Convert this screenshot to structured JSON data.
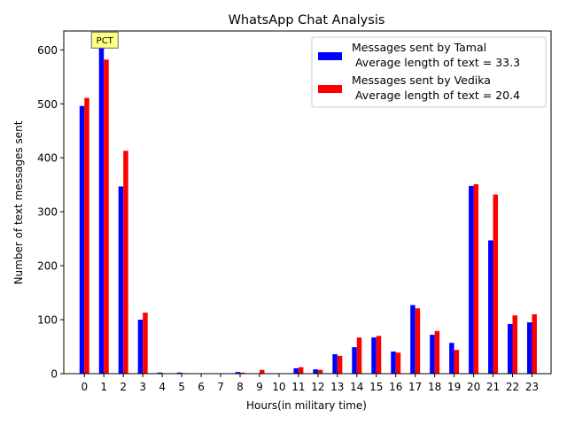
{
  "chart_data": {
    "type": "bar",
    "title": "WhatsApp Chat Analysis",
    "xlabel": "Hours(in military time)",
    "ylabel": "Number of text messages sent",
    "categories": [
      "0",
      "1",
      "2",
      "3",
      "4",
      "5",
      "6",
      "7",
      "8",
      "9",
      "10",
      "11",
      "12",
      "13",
      "14",
      "15",
      "16",
      "17",
      "18",
      "19",
      "20",
      "21",
      "22",
      "23"
    ],
    "ylim": [
      0,
      635
    ],
    "yticks": [
      0,
      100,
      200,
      300,
      400,
      500,
      600
    ],
    "grid": false,
    "legend_position": "upper-right",
    "series": [
      {
        "name": "Messages sent by Tamal\n Average length of text = 33.3",
        "color": "#0000ff",
        "values": [
          496,
          605,
          347,
          100,
          2,
          2,
          0,
          0,
          3,
          0,
          0,
          10,
          8,
          36,
          49,
          67,
          41,
          127,
          72,
          57,
          348,
          247,
          92,
          95
        ]
      },
      {
        "name": "Messages sent by Vedika\n Average length of text = 20.4",
        "color": "#ff0000",
        "values": [
          511,
          582,
          413,
          113,
          0,
          1,
          0,
          0,
          2,
          7,
          0,
          12,
          7,
          33,
          67,
          70,
          39,
          121,
          79,
          44,
          351,
          332,
          108,
          110
        ]
      }
    ],
    "annotations": [
      {
        "text": "PCT",
        "x": 1,
        "y": 605,
        "box_color": "#ffff80"
      }
    ]
  }
}
